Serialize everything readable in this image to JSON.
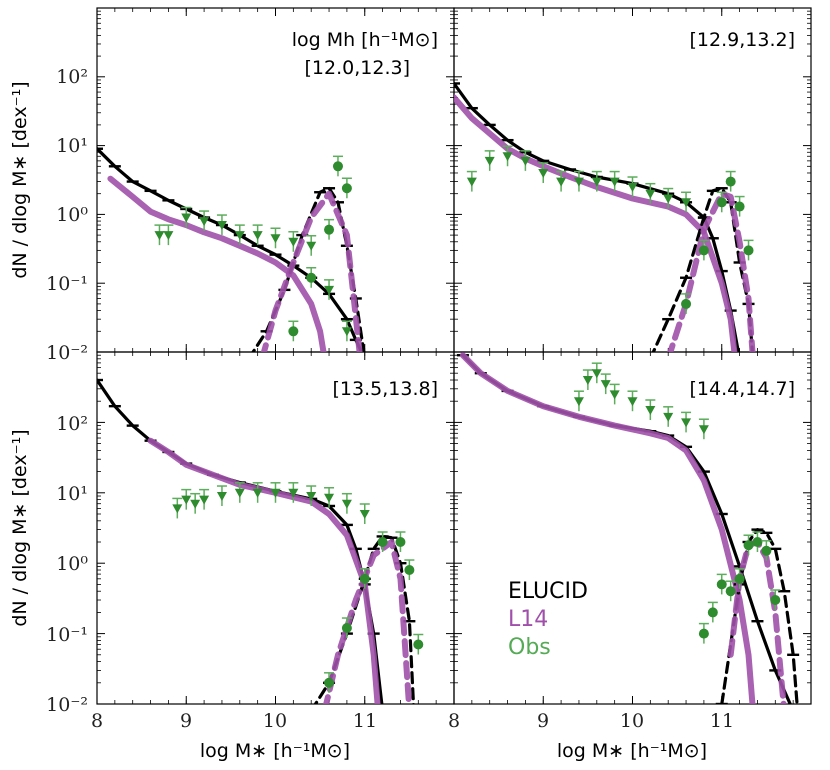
{
  "figure": {
    "ylabel": "dN / dlog M∗ [dex⁻¹]",
    "xlabel": "log M∗ [h⁻¹M⊙]",
    "header_label": "log Mh [h⁻¹M⊙]",
    "colors": {
      "elucid": "#000000",
      "l14": "#a050aa",
      "obs": "#2e8b2e"
    },
    "legend": {
      "elucid": "ELUCID",
      "l14": "L14",
      "obs": "Obs"
    }
  },
  "chart_data": [
    {
      "type": "line",
      "panel": "top-left",
      "label": "[12.0,12.3]",
      "xlim": [
        8,
        12
      ],
      "ylim": [
        0.01,
        1000
      ],
      "yscale": "log",
      "xticks": [
        "8",
        "9",
        "10",
        "11"
      ],
      "yticks": [
        "10⁻²",
        "10⁻¹",
        "10⁰",
        "10¹",
        "10²"
      ],
      "series": [
        {
          "name": "ELUCID all",
          "style": "solid",
          "x": [
            8.0,
            8.2,
            8.4,
            8.6,
            8.8,
            9.0,
            9.2,
            9.4,
            9.6,
            9.8,
            10.0,
            10.2,
            10.4,
            10.6,
            10.8,
            10.9,
            11.0
          ],
          "y": [
            9,
            5,
            3,
            2.2,
            1.6,
            1.2,
            0.9,
            0.7,
            0.5,
            0.35,
            0.26,
            0.18,
            0.12,
            0.07,
            0.03,
            0.015,
            0.008
          ]
        },
        {
          "name": "L14 all",
          "style": "solid",
          "x": [
            8.15,
            8.4,
            8.6,
            8.8,
            9.0,
            9.2,
            9.4,
            9.6,
            9.8,
            10.0,
            10.2,
            10.4,
            10.5,
            10.55
          ],
          "y": [
            3.3,
            1.8,
            1.1,
            0.85,
            0.7,
            0.55,
            0.45,
            0.35,
            0.27,
            0.2,
            0.13,
            0.05,
            0.02,
            0.008
          ]
        },
        {
          "name": "ELUCID central",
          "style": "dashed",
          "x": [
            9.7,
            9.9,
            10.1,
            10.3,
            10.5,
            10.6,
            10.7,
            10.8,
            10.9,
            11.0
          ],
          "y": [
            0.008,
            0.02,
            0.08,
            0.5,
            2.1,
            2.4,
            1.5,
            0.35,
            0.06,
            0.008
          ]
        },
        {
          "name": "L14 central",
          "style": "dashed",
          "x": [
            9.85,
            10.0,
            10.2,
            10.4,
            10.6,
            10.8,
            10.95
          ],
          "y": [
            0.008,
            0.04,
            0.2,
            0.9,
            2.0,
            0.5,
            0.008
          ]
        },
        {
          "name": "Obs satellites",
          "style": "markers",
          "x": [
            8.7,
            8.8,
            9.0,
            9.2,
            9.4,
            9.6,
            9.8,
            10.0,
            10.2,
            10.4,
            10.6,
            10.8
          ],
          "y": [
            0.5,
            0.5,
            0.9,
            0.8,
            0.7,
            0.5,
            0.5,
            0.45,
            0.4,
            0.35,
            0.08,
            0.02
          ]
        },
        {
          "name": "Obs centrals",
          "style": "markers",
          "x": [
            10.2,
            10.4,
            10.6,
            10.7,
            10.8
          ],
          "y": [
            0.02,
            0.12,
            0.6,
            5,
            2.4
          ]
        }
      ]
    },
    {
      "type": "line",
      "panel": "top-right",
      "label": "[12.9,13.2]",
      "xlim": [
        8,
        12
      ],
      "ylim": [
        0.01,
        1000
      ],
      "yscale": "log",
      "series": [
        {
          "name": "ELUCID all",
          "style": "solid",
          "x": [
            8.0,
            8.2,
            8.4,
            8.6,
            8.8,
            9.0,
            9.3,
            9.6,
            10.0,
            10.4,
            10.6,
            10.8,
            10.9,
            11.0,
            11.1,
            11.2
          ],
          "y": [
            80,
            35,
            20,
            12,
            8,
            6,
            4.5,
            3.5,
            2.8,
            2.0,
            1.5,
            0.9,
            0.45,
            0.15,
            0.04,
            0.008
          ]
        },
        {
          "name": "L14 all",
          "style": "solid",
          "x": [
            8.0,
            8.2,
            8.4,
            8.6,
            8.8,
            9.0,
            9.3,
            9.6,
            10.0,
            10.4,
            10.6,
            10.8,
            11.0,
            11.1,
            11.15
          ],
          "y": [
            50,
            25,
            15,
            9,
            6.5,
            5,
            3.5,
            2.5,
            1.7,
            1.3,
            1.0,
            0.55,
            0.1,
            0.03,
            0.008
          ]
        },
        {
          "name": "ELUCID central",
          "style": "dashed",
          "x": [
            10.2,
            10.4,
            10.6,
            10.8,
            10.9,
            11.0,
            11.1,
            11.2,
            11.3,
            11.35
          ],
          "y": [
            0.008,
            0.03,
            0.12,
            0.9,
            2.2,
            2.4,
            1.5,
            0.2,
            0.05,
            0.008
          ]
        },
        {
          "name": "L14 central",
          "style": "dashed",
          "x": [
            10.4,
            10.6,
            10.8,
            11.0,
            11.1,
            11.2,
            11.3,
            11.35
          ],
          "y": [
            0.008,
            0.05,
            0.6,
            2.0,
            1.8,
            0.4,
            0.06,
            0.008
          ]
        },
        {
          "name": "Obs satellites",
          "style": "markers",
          "x": [
            8.2,
            8.4,
            8.6,
            8.8,
            9.0,
            9.2,
            9.4,
            9.6,
            9.8,
            10.0,
            10.2,
            10.4,
            10.6
          ],
          "y": [
            3,
            6,
            7,
            6,
            4,
            3,
            3,
            3,
            3,
            2.5,
            2.0,
            1.7,
            1.5
          ]
        },
        {
          "name": "Obs centrals",
          "style": "markers",
          "x": [
            10.6,
            10.8,
            11.0,
            11.1,
            11.2,
            11.3
          ],
          "y": [
            0.05,
            0.3,
            1.5,
            3.0,
            1.3,
            0.3
          ]
        }
      ]
    },
    {
      "type": "line",
      "panel": "bottom-left",
      "label": "[13.5,13.8]",
      "xlim": [
        8,
        12
      ],
      "ylim": [
        0.01,
        1000
      ],
      "yscale": "log",
      "series": [
        {
          "name": "ELUCID all",
          "style": "solid",
          "x": [
            8.0,
            8.2,
            8.4,
            8.6,
            8.8,
            9.0,
            9.3,
            9.6,
            10.0,
            10.4,
            10.6,
            10.8,
            10.9,
            11.0,
            11.1,
            11.2
          ],
          "y": [
            400,
            170,
            90,
            55,
            38,
            26,
            18,
            14,
            10.5,
            8.2,
            6.5,
            3.5,
            1.6,
            0.5,
            0.1,
            0.008
          ]
        },
        {
          "name": "L14 all",
          "style": "solid",
          "x": [
            8.6,
            8.8,
            9.0,
            9.3,
            9.6,
            10.0,
            10.4,
            10.6,
            10.8,
            11.0,
            11.1,
            11.15
          ],
          "y": [
            55,
            38,
            25,
            18,
            13,
            10,
            7.5,
            5.0,
            2.5,
            0.5,
            0.05,
            0.008
          ]
        },
        {
          "name": "ELUCID central",
          "style": "dashed",
          "x": [
            10.4,
            10.6,
            10.8,
            11.0,
            11.1,
            11.2,
            11.3,
            11.4,
            11.5,
            11.55
          ],
          "y": [
            0.008,
            0.02,
            0.1,
            0.6,
            1.6,
            2.4,
            2.3,
            1.0,
            0.15,
            0.008
          ]
        },
        {
          "name": "L14 central",
          "style": "dashed",
          "x": [
            10.55,
            10.7,
            10.9,
            11.1,
            11.3,
            11.4,
            11.5
          ],
          "y": [
            0.008,
            0.05,
            0.3,
            1.3,
            2.0,
            0.6,
            0.008
          ]
        },
        {
          "name": "Obs satellites",
          "style": "markers",
          "x": [
            8.9,
            9.0,
            9.1,
            9.2,
            9.4,
            9.6,
            9.8,
            10.0,
            10.2,
            10.4,
            10.6,
            10.8,
            11.0
          ],
          "y": [
            6,
            8,
            7,
            8,
            9,
            10,
            10,
            10,
            10,
            9,
            8.5,
            7,
            5
          ]
        },
        {
          "name": "Obs centrals",
          "style": "markers",
          "x": [
            10.6,
            10.8,
            11.0,
            11.2,
            11.4,
            11.5,
            11.6
          ],
          "y": [
            0.02,
            0.12,
            0.6,
            2.0,
            2.0,
            0.8,
            0.07
          ]
        }
      ]
    },
    {
      "type": "line",
      "panel": "bottom-right",
      "label": "[14.4,14.7]",
      "xlim": [
        8,
        12
      ],
      "ylim": [
        0.01,
        1000
      ],
      "yscale": "log",
      "series": [
        {
          "name": "ELUCID all",
          "style": "solid",
          "x": [
            8.1,
            8.3,
            8.6,
            9.0,
            9.4,
            9.8,
            10.2,
            10.4,
            10.6,
            10.8,
            11.0,
            11.2,
            11.4,
            11.6,
            11.8
          ],
          "y": [
            900,
            500,
            280,
            170,
            120,
            90,
            75,
            65,
            45,
            20,
            5,
            0.9,
            0.15,
            0.03,
            0.008
          ]
        },
        {
          "name": "L14 all",
          "style": "solid",
          "x": [
            8.1,
            8.3,
            8.6,
            9.0,
            9.4,
            9.8,
            10.2,
            10.4,
            10.6,
            10.8,
            11.0,
            11.2,
            11.3,
            11.35
          ],
          "y": [
            900,
            500,
            280,
            170,
            120,
            90,
            70,
            60,
            40,
            15,
            3,
            0.3,
            0.05,
            0.008
          ]
        },
        {
          "name": "ELUCID central",
          "style": "dashed",
          "x": [
            11.0,
            11.2,
            11.3,
            11.4,
            11.5,
            11.6,
            11.7,
            11.8,
            11.85
          ],
          "y": [
            0.01,
            0.5,
            2.0,
            3.0,
            2.7,
            1.6,
            0.4,
            0.05,
            0.008
          ]
        },
        {
          "name": "L14 central",
          "style": "dashed",
          "x": [
            11.1,
            11.2,
            11.3,
            11.4,
            11.5,
            11.6,
            11.7
          ],
          "y": [
            0.05,
            0.6,
            1.8,
            2.0,
            1.2,
            0.2,
            0.008
          ]
        },
        {
          "name": "Obs satellites",
          "style": "markers",
          "x": [
            9.4,
            9.5,
            9.6,
            9.7,
            9.8,
            10.0,
            10.2,
            10.4,
            10.6,
            10.8
          ],
          "y": [
            200,
            400,
            500,
            350,
            250,
            200,
            150,
            120,
            100,
            80
          ]
        },
        {
          "name": "Obs centrals",
          "style": "markers",
          "x": [
            10.8,
            10.9,
            11.0,
            11.1,
            11.2,
            11.3,
            11.4,
            11.5,
            11.6
          ],
          "y": [
            0.1,
            0.2,
            0.5,
            0.4,
            0.6,
            1.8,
            2.0,
            1.5,
            0.3
          ]
        }
      ]
    }
  ]
}
